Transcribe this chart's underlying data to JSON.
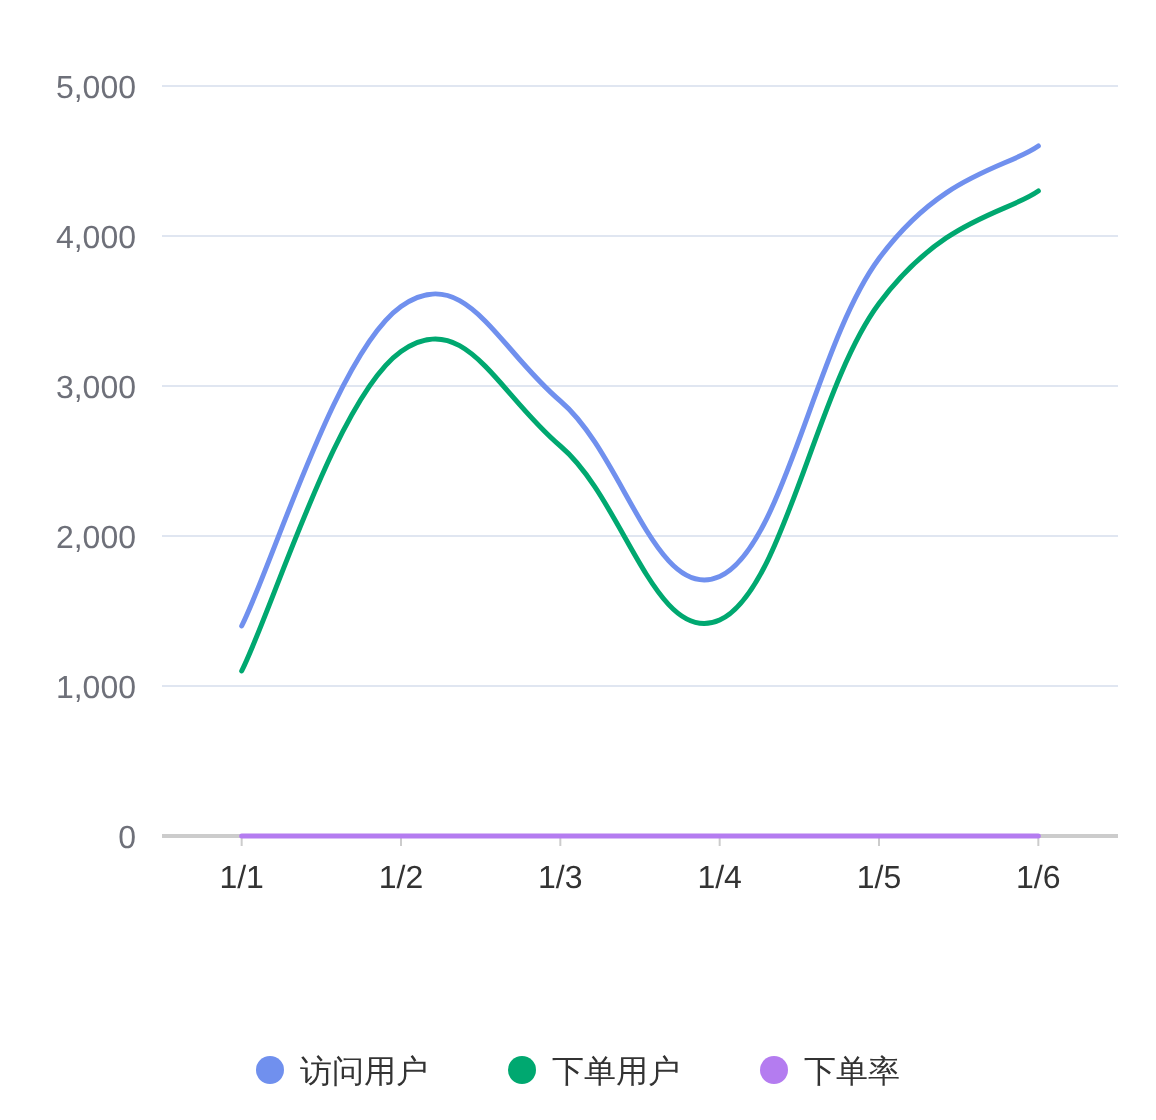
{
  "chart_data": {
    "type": "line",
    "categories": [
      "1/1",
      "1/2",
      "1/3",
      "1/4",
      "1/5",
      "1/6"
    ],
    "series": [
      {
        "name": "访问用户",
        "color": "#7090ee",
        "values": [
          1400,
          3530,
          2900,
          1730,
          3850,
          4600
        ]
      },
      {
        "name": "下单用户",
        "color": "#00a870",
        "values": [
          1100,
          3230,
          2600,
          1440,
          3550,
          4300
        ]
      },
      {
        "name": "下单率",
        "color": "#b47cf0",
        "values": [
          0,
          0,
          0,
          0,
          0,
          0
        ]
      }
    ],
    "ylim": [
      0,
      5000
    ],
    "yticks": [
      {
        "value": 0,
        "label": "0"
      },
      {
        "value": 1000,
        "label": "1,000"
      },
      {
        "value": 2000,
        "label": "2,000"
      },
      {
        "value": 3000,
        "label": "3,000"
      },
      {
        "value": 4000,
        "label": "4,000"
      },
      {
        "value": 5000,
        "label": "5,000"
      }
    ],
    "grid": "y",
    "legend": "bottom",
    "marker": "none",
    "line_style": "solid"
  }
}
